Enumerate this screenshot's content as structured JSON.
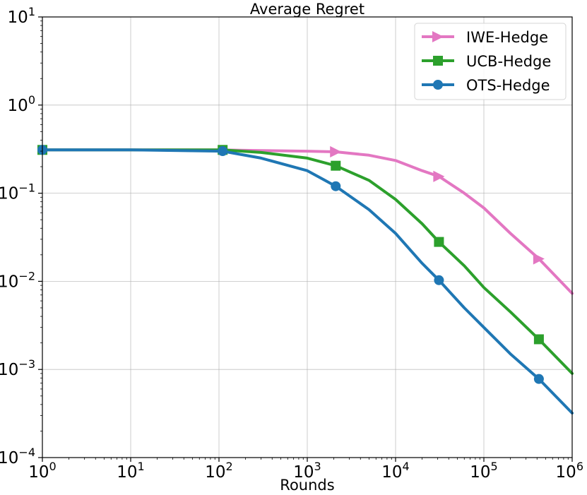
{
  "chart_data": {
    "type": "line",
    "title": "Average Regret",
    "xlabel": "Rounds",
    "ylabel": "",
    "xscale": "log",
    "yscale": "log",
    "xlim": [
      1,
      1000000
    ],
    "ylim": [
      0.0001,
      10
    ],
    "grid": true,
    "legend_position": "top-right",
    "x_ticks": [
      {
        "base": "10",
        "exp": "0"
      },
      {
        "base": "10",
        "exp": "1"
      },
      {
        "base": "10",
        "exp": "2"
      },
      {
        "base": "10",
        "exp": "3"
      },
      {
        "base": "10",
        "exp": "4"
      },
      {
        "base": "10",
        "exp": "5"
      },
      {
        "base": "10",
        "exp": "6"
      }
    ],
    "y_ticks": [
      {
        "base": "10",
        "exp": "1"
      },
      {
        "base": "10",
        "exp": "0"
      },
      {
        "base": "10",
        "exp": "−1"
      },
      {
        "base": "10",
        "exp": "−2"
      },
      {
        "base": "10",
        "exp": "−3"
      },
      {
        "base": "10",
        "exp": "−4"
      }
    ],
    "series": [
      {
        "name": "IWE-Hedge",
        "color": "#e377c2",
        "marker": "triangle-right",
        "x": [
          1,
          10,
          100,
          300,
          1000,
          2100,
          5000,
          10000,
          20000,
          31000,
          60000,
          100000,
          200000,
          420000,
          1000000
        ],
        "y": [
          0.31,
          0.31,
          0.31,
          0.305,
          0.3,
          0.295,
          0.27,
          0.235,
          0.18,
          0.155,
          0.1,
          0.068,
          0.035,
          0.018,
          0.0073
        ],
        "marker_x": [
          2100,
          31000,
          420000
        ],
        "marker_y": [
          0.295,
          0.155,
          0.018
        ]
      },
      {
        "name": "UCB-Hedge",
        "color": "#2ca02c",
        "marker": "square",
        "x": [
          1,
          10,
          110,
          300,
          1000,
          2100,
          5000,
          10000,
          20000,
          31000,
          60000,
          100000,
          200000,
          420000,
          1000000
        ],
        "y": [
          0.31,
          0.31,
          0.31,
          0.29,
          0.25,
          0.205,
          0.14,
          0.085,
          0.045,
          0.028,
          0.015,
          0.0085,
          0.0045,
          0.0022,
          0.0009
        ],
        "marker_x": [
          1,
          110,
          2100,
          31000,
          420000
        ],
        "marker_y": [
          0.31,
          0.31,
          0.205,
          0.028,
          0.0022
        ]
      },
      {
        "name": "OTS-Hedge",
        "color": "#1f77b4",
        "marker": "circle",
        "x": [
          1,
          10,
          110,
          300,
          1000,
          2100,
          5000,
          10000,
          20000,
          31000,
          60000,
          100000,
          200000,
          420000,
          1000000
        ],
        "y": [
          0.31,
          0.31,
          0.3,
          0.25,
          0.18,
          0.12,
          0.065,
          0.035,
          0.016,
          0.0103,
          0.005,
          0.003,
          0.0015,
          0.00078,
          0.00032
        ],
        "marker_x": [
          1,
          110,
          2100,
          31000,
          420000
        ],
        "marker_y": [
          0.31,
          0.3,
          0.12,
          0.0103,
          0.00078
        ]
      }
    ]
  }
}
